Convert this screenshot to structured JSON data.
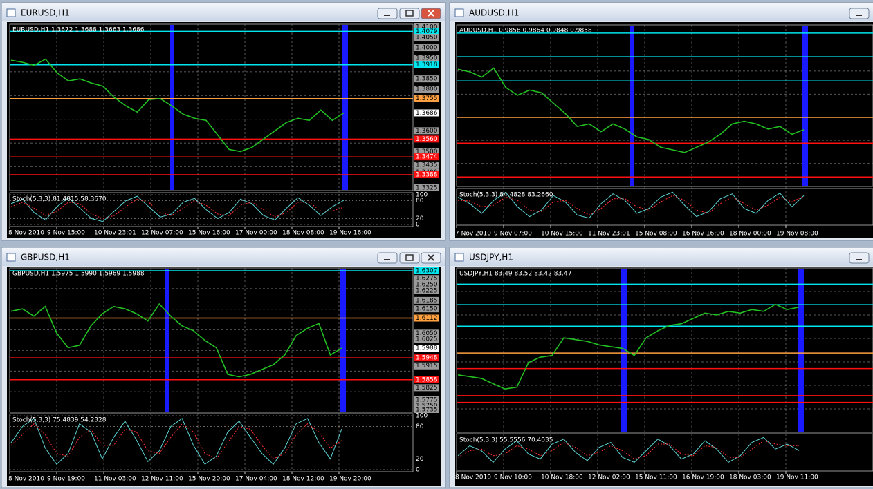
{
  "windows": [
    {
      "title": "EURUSD,H1",
      "info": "EURUSD,H1  1.3672 1.3688 1.3663 1.3686",
      "price": {
        "ylim": [
          1.3325,
          1.41
        ],
        "labels": [
          {
            "value": 1.41,
            "label": "1.4100"
          },
          {
            "value": 1.4079,
            "label": "1.4079",
            "color": "cyan"
          },
          {
            "value": 1.405,
            "label": "1.4050"
          },
          {
            "value": 1.4,
            "label": "1.4000"
          },
          {
            "value": 1.395,
            "label": "1.3950"
          },
          {
            "value": 1.3918,
            "label": "1.3918",
            "color": "cyan"
          },
          {
            "value": 1.385,
            "label": "1.3850"
          },
          {
            "value": 1.38,
            "label": "1.3800"
          },
          {
            "value": 1.3755,
            "label": "1.3755",
            "color": "orange"
          },
          {
            "value": 1.3686,
            "label": "1.3686",
            "color": "white"
          },
          {
            "value": 1.36,
            "label": "1.3600"
          },
          {
            "value": 1.356,
            "label": "1.3560",
            "color": "red"
          },
          {
            "value": 1.35,
            "label": "1.3500"
          },
          {
            "value": 1.3474,
            "label": "1.3474",
            "color": "red"
          },
          {
            "value": 1.3435,
            "label": "1.3435"
          },
          {
            "value": 1.34,
            "label": "1.3400"
          },
          {
            "value": 1.3388,
            "label": "1.3388",
            "color": "red"
          },
          {
            "value": 1.3325,
            "label": "1.3325"
          }
        ],
        "levels": [],
        "closes": [
          1.394,
          1.393,
          1.3915,
          1.3945,
          1.388,
          1.384,
          1.385,
          1.383,
          1.3815,
          1.376,
          1.372,
          1.369,
          1.375,
          1.3755,
          1.372,
          1.368,
          1.366,
          1.365,
          1.358,
          1.351,
          1.35,
          1.352,
          1.356,
          1.36,
          1.364,
          1.366,
          1.365,
          1.37,
          1.365,
          1.3686
        ]
      },
      "stoch": {
        "label": "Stoch(5,3,3) 81.4815 58.3670",
        "ylim": [
          0,
          100
        ],
        "ticks": [
          100,
          80,
          20,
          0
        ],
        "main": [
          70,
          85,
          40,
          15,
          60,
          90,
          55,
          20,
          10,
          45,
          80,
          95,
          60,
          25,
          35,
          75,
          88,
          50,
          20,
          40,
          85,
          70,
          30,
          15,
          55,
          90,
          65,
          30,
          60,
          81.4815
        ],
        "signal": [
          60,
          75,
          55,
          30,
          45,
          75,
          70,
          35,
          20,
          30,
          60,
          85,
          75,
          40,
          30,
          55,
          80,
          65,
          35,
          30,
          65,
          75,
          50,
          25,
          40,
          75,
          75,
          45,
          45,
          58.367
        ]
      },
      "dates": [
        "8 Nov 2010",
        "9 Nov 15:00",
        "10 Nov 23:01",
        "12 Nov 07:00",
        "15 Nov 16:00",
        "17 Nov 00:00",
        "18 Nov 08:00",
        "19 Nov 16:00"
      ]
    },
    {
      "title": "AUDUSD,H1",
      "info": "AUDUSD,H1  0.9858 0.9864 0.9848 0.9858",
      "price": {
        "ylim": [
          0.965,
          1.025
        ],
        "labels": [],
        "levels": [
          {
            "value": 1.0229,
            "color": "cyan"
          },
          {
            "value": 1.0138,
            "color": "cyan"
          },
          {
            "value": 1.0045,
            "color": "cyan"
          },
          {
            "value": 0.9905,
            "color": "orange"
          },
          {
            "value": 0.9806,
            "color": "red"
          },
          {
            "value": 0.9676,
            "color": "red"
          }
        ],
        "closes": [
          1.009,
          1.008,
          1.006,
          1.0095,
          1.002,
          0.999,
          1.001,
          1.0,
          0.996,
          0.992,
          0.987,
          0.988,
          0.985,
          0.988,
          0.986,
          0.983,
          0.982,
          0.979,
          0.978,
          0.977,
          0.979,
          0.981,
          0.984,
          0.988,
          0.989,
          0.988,
          0.986,
          0.987,
          0.984,
          0.9858
        ]
      },
      "stoch": {
        "label": "Stoch(5,3,3) 84.4828 83.2660",
        "ylim": [
          0,
          100
        ],
        "ticks": [],
        "main": [
          80,
          60,
          30,
          70,
          95,
          50,
          20,
          40,
          85,
          65,
          25,
          15,
          60,
          90,
          70,
          30,
          45,
          80,
          95,
          55,
          20,
          35,
          75,
          90,
          45,
          30,
          70,
          92,
          50,
          84.4828
        ],
        "signal": [
          70,
          68,
          50,
          55,
          80,
          70,
          40,
          35,
          65,
          70,
          45,
          25,
          45,
          75,
          75,
          50,
          40,
          65,
          85,
          70,
          40,
          30,
          60,
          80,
          60,
          40,
          55,
          80,
          65,
          83.266
        ]
      },
      "dates": [
        "7 Nov 2010",
        "9 Nov 07:00",
        "10 Nov 15:00",
        "11 Nov 23:01",
        "15 Nov 08:00",
        "16 Nov 16:00",
        "18 Nov 00:00",
        "19 Nov 08:00"
      ]
    },
    {
      "title": "GBPUSD,H1",
      "info": "GBPUSD,H1  1.5975 1.5990 1.5969 1.5988",
      "price": {
        "ylim": [
          1.5735,
          1.6307
        ],
        "labels": [
          {
            "value": 1.6307,
            "label": "1.6307",
            "color": "cyan"
          },
          {
            "value": 1.6275,
            "label": "1.6275"
          },
          {
            "value": 1.625,
            "label": "1.6250"
          },
          {
            "value": 1.6225,
            "label": "1.6225"
          },
          {
            "value": 1.6185,
            "label": "1.6185"
          },
          {
            "value": 1.615,
            "label": "1.6150"
          },
          {
            "value": 1.6112,
            "label": "1.6112",
            "color": "orange"
          },
          {
            "value": 1.605,
            "label": "1.6050"
          },
          {
            "value": 1.6025,
            "label": "1.6025"
          },
          {
            "value": 1.5988,
            "label": "1.5988",
            "color": "white"
          },
          {
            "value": 1.5948,
            "label": "1.5948",
            "color": "red"
          },
          {
            "value": 1.5915,
            "label": "1.5915"
          },
          {
            "value": 1.5858,
            "label": "1.5858",
            "color": "red"
          },
          {
            "value": 1.5825,
            "label": "1.5825"
          },
          {
            "value": 1.5775,
            "label": "1.5775"
          },
          {
            "value": 1.575,
            "label": "1.5750"
          },
          {
            "value": 1.5735,
            "label": "1.5735"
          }
        ],
        "levels": [],
        "closes": [
          1.614,
          1.615,
          1.612,
          1.616,
          1.605,
          1.599,
          1.6,
          1.608,
          1.613,
          1.616,
          1.615,
          1.613,
          1.61,
          1.617,
          1.612,
          1.608,
          1.606,
          1.602,
          1.599,
          1.588,
          1.587,
          1.588,
          1.59,
          1.592,
          1.596,
          1.604,
          1.607,
          1.609,
          1.596,
          1.5988
        ]
      },
      "stoch": {
        "label": "Stoch(5,3,3) 75.4839 54.2328",
        "ylim": [
          0,
          100
        ],
        "ticks": [
          100,
          80,
          20,
          0
        ],
        "main": [
          50,
          80,
          95,
          40,
          10,
          30,
          85,
          70,
          20,
          60,
          90,
          55,
          15,
          35,
          80,
          95,
          45,
          10,
          25,
          70,
          90,
          60,
          30,
          10,
          40,
          85,
          95,
          50,
          20,
          75.4839
        ],
        "signal": [
          45,
          65,
          85,
          65,
          30,
          25,
          60,
          75,
          45,
          45,
          75,
          70,
          35,
          30,
          60,
          85,
          70,
          30,
          20,
          50,
          80,
          75,
          45,
          20,
          30,
          65,
          85,
          70,
          40,
          54.2328
        ]
      },
      "dates": [
        "8 Nov 2010",
        "9 Nov 19:00",
        "11 Nov 03:00",
        "12 Nov 11:00",
        "15 Nov 20:00",
        "17 Nov 04:00",
        "18 Nov 12:00",
        "19 Nov 20:00"
      ]
    },
    {
      "title": "USDJPY,H1",
      "info": "USDJPY,H1  83.49 83.52 83.42 83.47",
      "price": {
        "ylim": [
          80.0,
          84.5
        ],
        "labels": [],
        "levels": [
          {
            "value": 84.12,
            "color": "cyan"
          },
          {
            "value": 83.54,
            "color": "cyan"
          },
          {
            "value": 82.93,
            "color": "cyan"
          },
          {
            "value": 82.17,
            "color": "orange"
          },
          {
            "value": 81.73,
            "color": "red"
          },
          {
            "value": 80.96,
            "color": "red"
          },
          {
            "value": 80.77,
            "color": "red"
          }
        ],
        "closes": [
          81.55,
          81.5,
          81.45,
          81.3,
          81.15,
          81.2,
          81.9,
          82.05,
          82.1,
          82.6,
          82.55,
          82.5,
          82.4,
          82.35,
          82.3,
          82.1,
          82.6,
          82.8,
          82.95,
          83.0,
          83.15,
          83.3,
          83.25,
          83.35,
          83.3,
          83.4,
          83.35,
          83.55,
          83.4,
          83.47
        ]
      },
      "stoch": {
        "label": "Stoch(5,3,3) 55.5556 70.4035",
        "ylim": [
          0,
          100
        ],
        "ticks": [],
        "main": [
          40,
          70,
          55,
          20,
          60,
          85,
          45,
          30,
          75,
          90,
          50,
          25,
          65,
          80,
          35,
          20,
          55,
          90,
          70,
          30,
          45,
          85,
          60,
          20,
          40,
          80,
          95,
          60,
          75,
          55.5556
        ],
        "signal": [
          35,
          55,
          60,
          40,
          45,
          70,
          60,
          40,
          55,
          80,
          65,
          40,
          50,
          70,
          55,
          30,
          40,
          75,
          75,
          45,
          40,
          70,
          65,
          35,
          35,
          60,
          85,
          75,
          70,
          70.4035
        ]
      },
      "dates": [
        "8 Nov 2010",
        "9 Nov 10:00",
        "10 Nov 18:00",
        "12 Nov 02:00",
        "15 Nov 11:00",
        "16 Nov 19:00",
        "18 Nov 03:00",
        "19 Nov 11:00"
      ]
    }
  ]
}
